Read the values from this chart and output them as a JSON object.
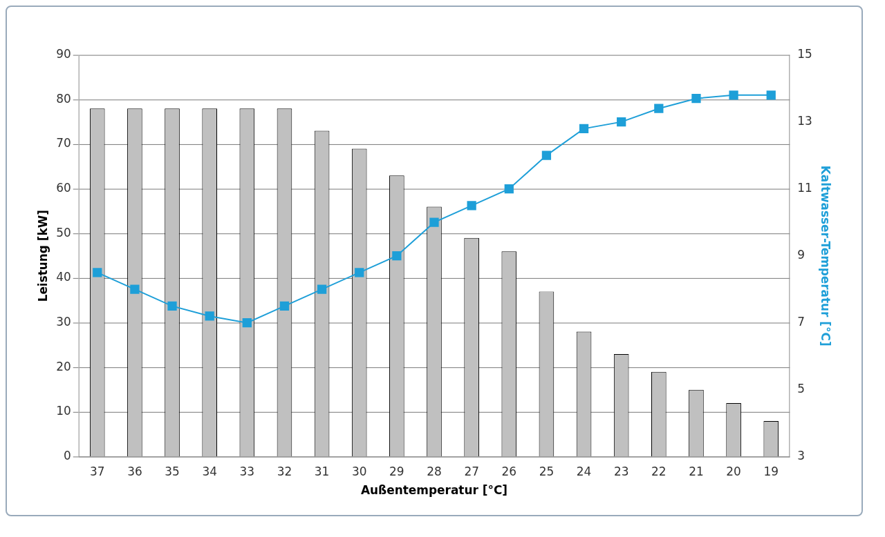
{
  "chart_data": {
    "type": "bar",
    "xlabel": "Außentemperatur [°C]",
    "ylabel": "Leistung [kW]",
    "y2label": "Kaltwasser-Temperatur [°C]",
    "categories": [
      "37",
      "36",
      "35",
      "34",
      "33",
      "32",
      "31",
      "30",
      "29",
      "28",
      "27",
      "26",
      "25",
      "24",
      "23",
      "22",
      "21",
      "20",
      "19"
    ],
    "series": [
      {
        "color": "#c0c0c0",
        "values": [
          78,
          78,
          78,
          78,
          78,
          78,
          73,
          69,
          63,
          56,
          49,
          46,
          37,
          28,
          23,
          19,
          15,
          12,
          8
        ]
      },
      {
        "type": "line",
        "axis": "y2",
        "color": "#1e9fd8",
        "marker": "square",
        "values": [
          8.5,
          8.0,
          7.5,
          7.2,
          7.0,
          7.5,
          8.0,
          8.5,
          9.0,
          10.0,
          10.5,
          11.0,
          12.0,
          12.8,
          13.0,
          13.4,
          13.7,
          13.8,
          13.8
        ]
      }
    ],
    "ylim": [
      0,
      90
    ],
    "yticks": [
      0,
      10,
      20,
      30,
      40,
      50,
      60,
      70,
      80,
      90
    ],
    "y2lim": [
      3,
      15
    ],
    "y2ticks": [
      3,
      5,
      7,
      9,
      11,
      13,
      15
    ],
    "grid": "y",
    "legend": false
  }
}
